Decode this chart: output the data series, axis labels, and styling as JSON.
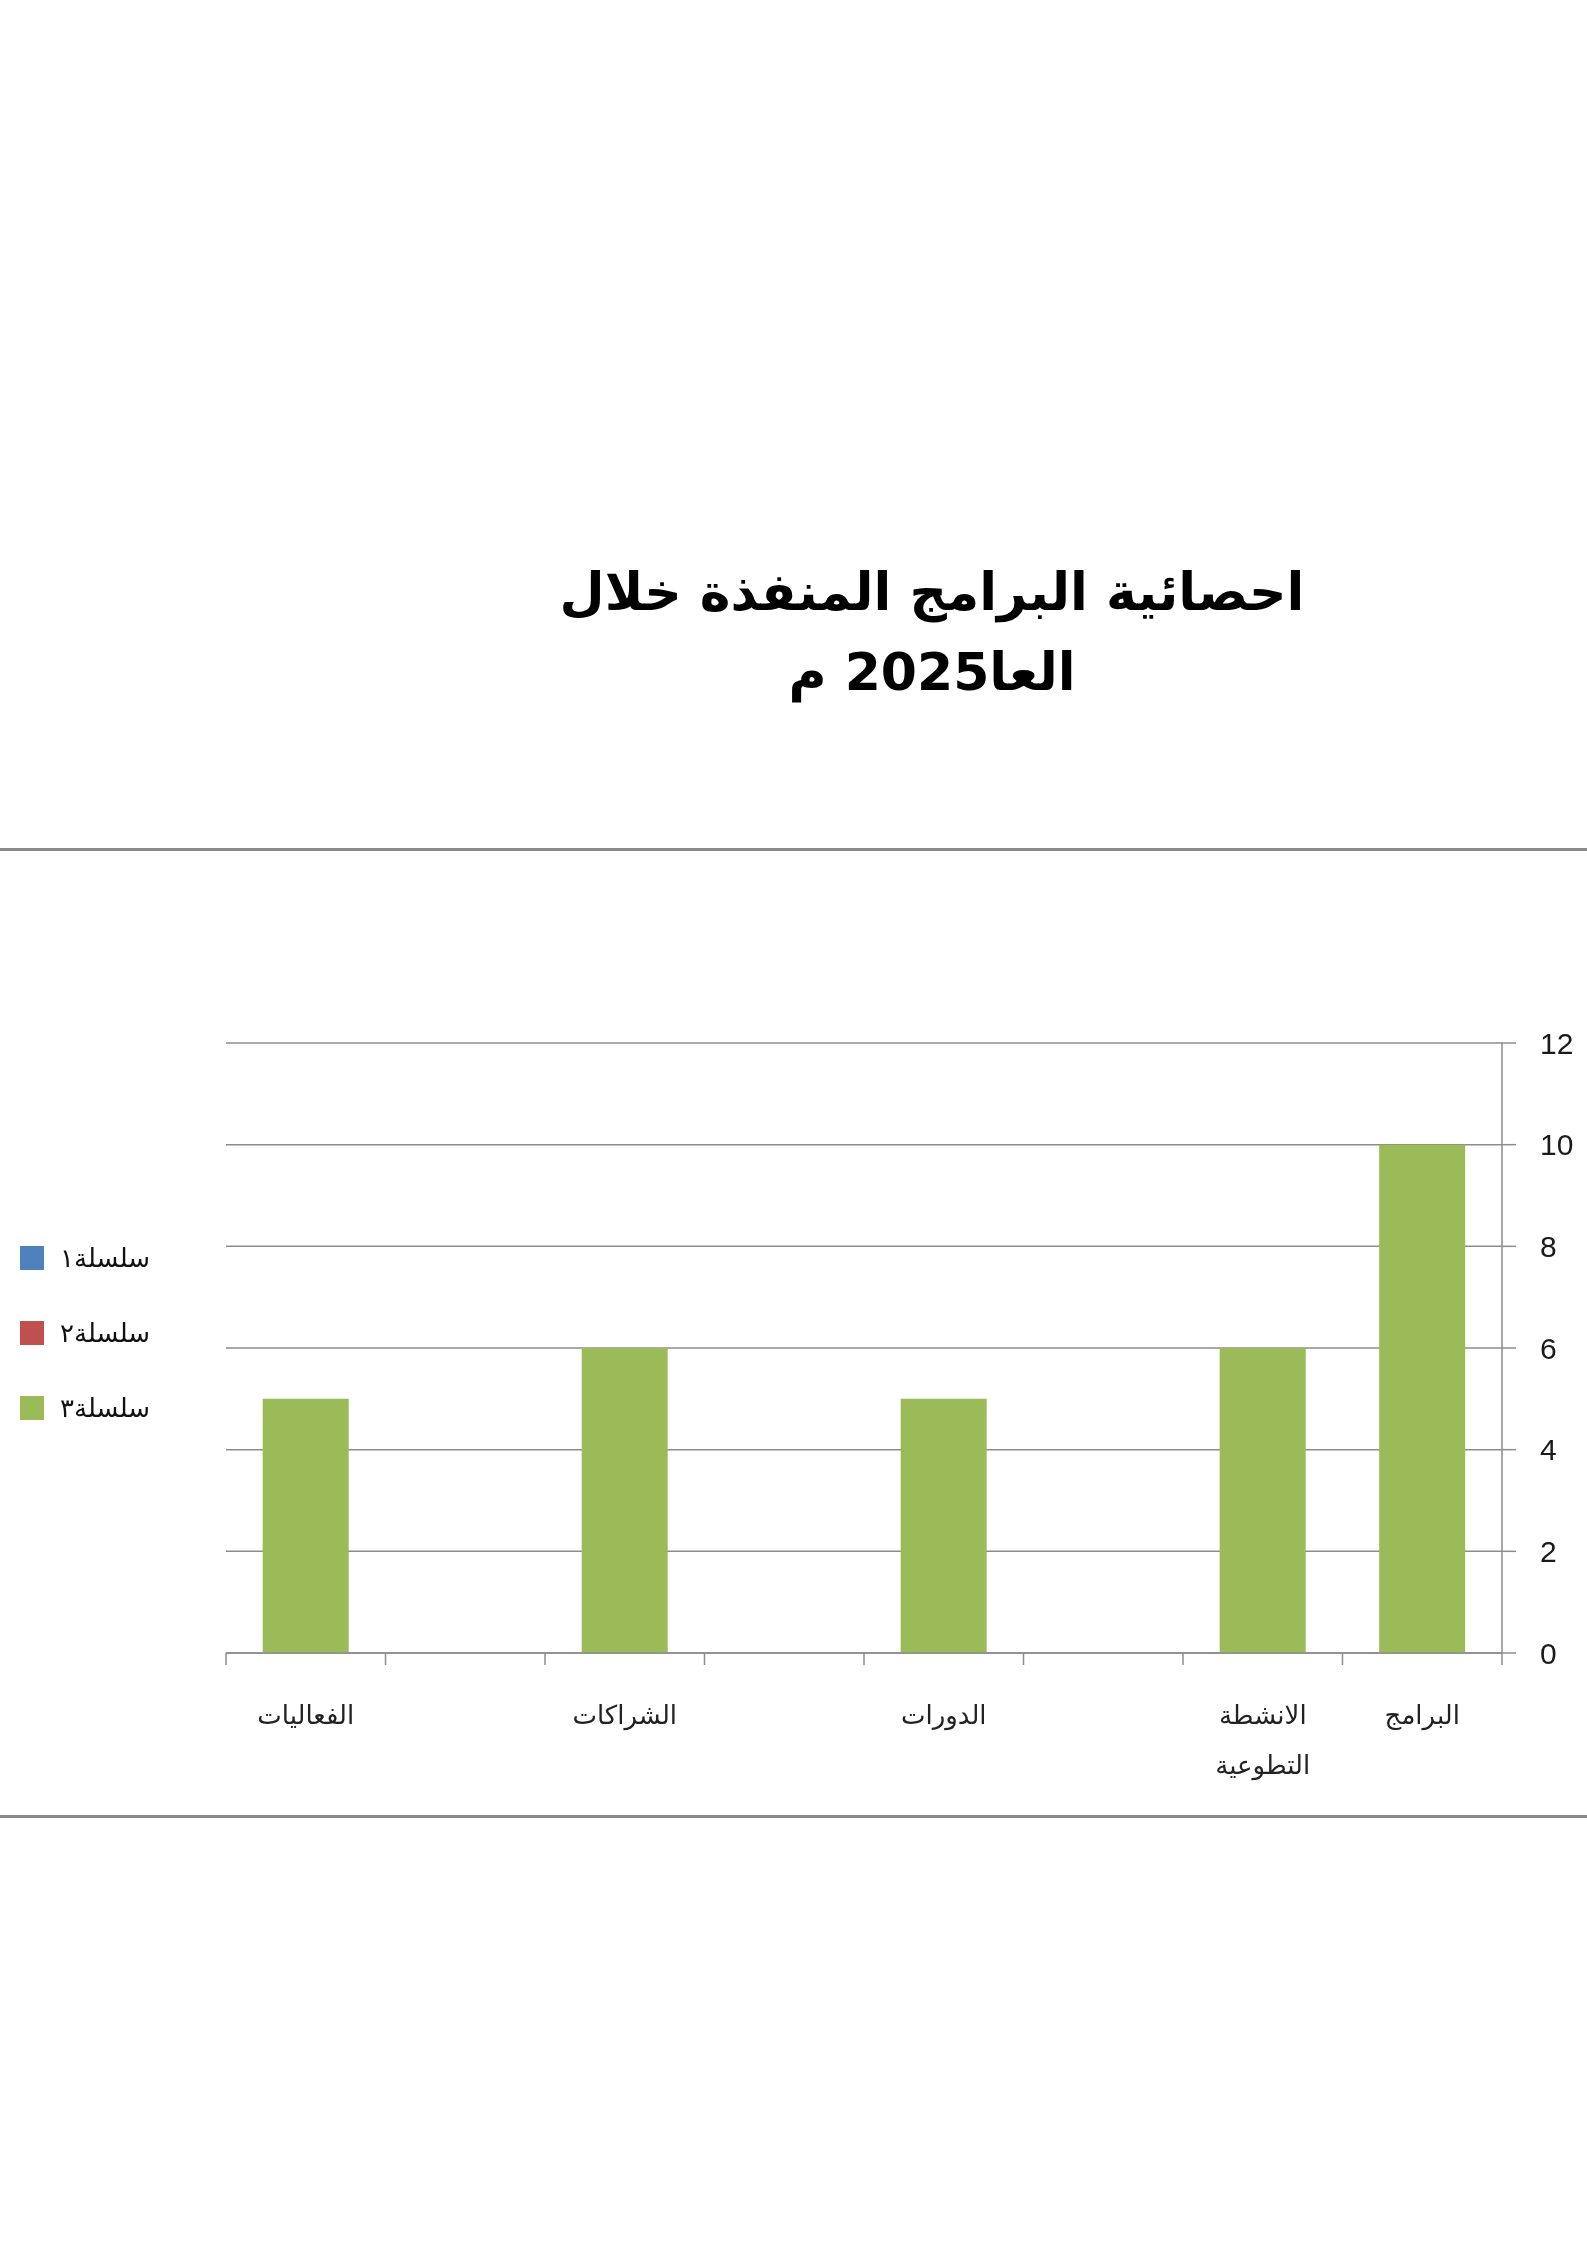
{
  "chart_data": {
    "type": "bar",
    "title": "احصائية البرامج المنفذة خلال العا2025 م",
    "categories": [
      "الفعاليات",
      null,
      "الشراكات",
      null,
      "الدورات",
      null,
      "الانشطة التطوعية",
      "البرامج"
    ],
    "series": [
      {
        "name": "سلسلة١",
        "color": "#4f81bd",
        "values": [
          null,
          null,
          null,
          null,
          null,
          null,
          null,
          null
        ]
      },
      {
        "name": "سلسلة٢",
        "color": "#c0504d",
        "values": [
          null,
          null,
          null,
          null,
          null,
          null,
          null,
          null
        ]
      },
      {
        "name": "سلسلة٣",
        "color": "#9bbb59",
        "values": [
          5,
          null,
          6,
          null,
          5,
          null,
          6,
          10
        ]
      }
    ],
    "ylim": [
      0,
      12
    ],
    "yticks": [
      0,
      2,
      4,
      6,
      8,
      10,
      12
    ],
    "grid": "y",
    "legend": "left"
  }
}
